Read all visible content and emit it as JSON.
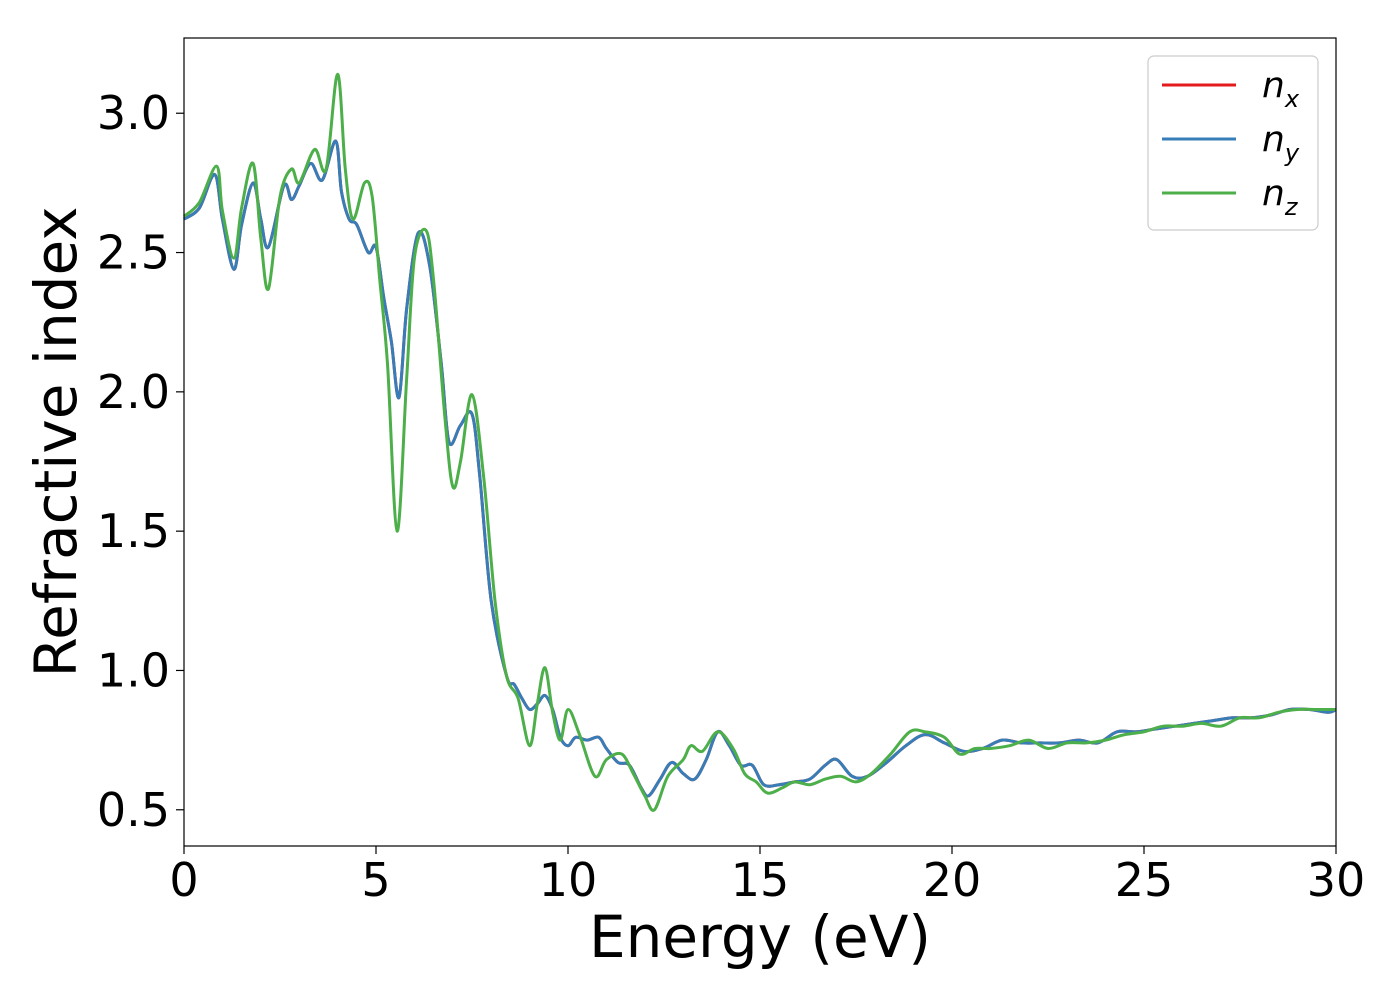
{
  "chart_data": {
    "type": "line",
    "xlabel": "Energy (eV)",
    "ylabel": "Refractive index",
    "xlim": [
      0,
      30
    ],
    "ylim": [
      0.37,
      3.27
    ],
    "xticks": [
      0,
      5,
      10,
      15,
      20,
      25,
      30
    ],
    "xtick_labels": [
      "0",
      "5",
      "10",
      "15",
      "20",
      "25",
      "30"
    ],
    "yticks": [
      0.5,
      1.0,
      1.5,
      2.0,
      2.5,
      3.0
    ],
    "ytick_labels": [
      "0.5",
      "1.0",
      "1.5",
      "2.0",
      "2.5",
      "3.0"
    ],
    "grid": false,
    "legend_position": "top-right",
    "series": [
      {
        "name": "n",
        "sub": "x",
        "color": "#e41a1c",
        "x": [
          0,
          0.4,
          0.8,
          1.0,
          1.3,
          1.5,
          1.8,
          2.0,
          2.2,
          2.6,
          2.8,
          3.0,
          3.3,
          3.6,
          3.95,
          4.1,
          4.3,
          4.5,
          4.8,
          5.0,
          5.2,
          5.4,
          5.6,
          5.8,
          6.1,
          6.4,
          6.7,
          6.9,
          7.2,
          7.5,
          7.7,
          8.0,
          8.4,
          8.6,
          8.8,
          9.0,
          9.2,
          9.4,
          9.6,
          9.8,
          10.0,
          10.2,
          10.5,
          10.8,
          11.0,
          11.3,
          11.6,
          11.9,
          12.1,
          12.4,
          12.7,
          13.0,
          13.3,
          13.6,
          13.9,
          14.2,
          14.5,
          14.8,
          15.1,
          15.5,
          15.9,
          16.3,
          16.7,
          17.0,
          17.4,
          17.8,
          18.3,
          18.8,
          19.3,
          19.8,
          20.3,
          20.8,
          21.3,
          21.8,
          22.3,
          22.8,
          23.3,
          23.8,
          24.3,
          24.8,
          25.3,
          25.8,
          26.3,
          26.8,
          27.3,
          27.8,
          28.3,
          28.8,
          29.3,
          29.8,
          30.0
        ],
        "y": [
          2.62,
          2.66,
          2.78,
          2.62,
          2.44,
          2.6,
          2.75,
          2.62,
          2.52,
          2.74,
          2.69,
          2.74,
          2.82,
          2.76,
          2.9,
          2.72,
          2.62,
          2.6,
          2.5,
          2.52,
          2.34,
          2.18,
          1.98,
          2.3,
          2.57,
          2.45,
          2.1,
          1.82,
          1.88,
          1.92,
          1.7,
          1.25,
          0.98,
          0.95,
          0.9,
          0.86,
          0.88,
          0.91,
          0.86,
          0.76,
          0.73,
          0.76,
          0.75,
          0.76,
          0.72,
          0.67,
          0.66,
          0.58,
          0.55,
          0.61,
          0.67,
          0.63,
          0.61,
          0.68,
          0.78,
          0.73,
          0.66,
          0.66,
          0.59,
          0.59,
          0.6,
          0.61,
          0.66,
          0.68,
          0.62,
          0.62,
          0.67,
          0.73,
          0.77,
          0.74,
          0.71,
          0.72,
          0.75,
          0.74,
          0.74,
          0.74,
          0.75,
          0.74,
          0.78,
          0.78,
          0.79,
          0.8,
          0.81,
          0.82,
          0.83,
          0.83,
          0.84,
          0.86,
          0.86,
          0.85,
          0.86
        ]
      },
      {
        "name": "n",
        "sub": "y",
        "color": "#377eb8",
        "x": [
          0,
          0.4,
          0.8,
          1.0,
          1.3,
          1.5,
          1.8,
          2.0,
          2.2,
          2.6,
          2.8,
          3.0,
          3.3,
          3.6,
          3.95,
          4.1,
          4.3,
          4.5,
          4.8,
          5.0,
          5.2,
          5.4,
          5.6,
          5.8,
          6.1,
          6.4,
          6.7,
          6.9,
          7.2,
          7.5,
          7.7,
          8.0,
          8.4,
          8.6,
          8.8,
          9.0,
          9.2,
          9.4,
          9.6,
          9.8,
          10.0,
          10.2,
          10.5,
          10.8,
          11.0,
          11.3,
          11.6,
          11.9,
          12.1,
          12.4,
          12.7,
          13.0,
          13.3,
          13.6,
          13.9,
          14.2,
          14.5,
          14.8,
          15.1,
          15.5,
          15.9,
          16.3,
          16.7,
          17.0,
          17.4,
          17.8,
          18.3,
          18.8,
          19.3,
          19.8,
          20.3,
          20.8,
          21.3,
          21.8,
          22.3,
          22.8,
          23.3,
          23.8,
          24.3,
          24.8,
          25.3,
          25.8,
          26.3,
          26.8,
          27.3,
          27.8,
          28.3,
          28.8,
          29.3,
          29.8,
          30.0
        ],
        "y": [
          2.62,
          2.66,
          2.78,
          2.62,
          2.44,
          2.6,
          2.75,
          2.62,
          2.52,
          2.74,
          2.69,
          2.74,
          2.82,
          2.76,
          2.9,
          2.72,
          2.62,
          2.6,
          2.5,
          2.52,
          2.34,
          2.18,
          1.98,
          2.3,
          2.57,
          2.45,
          2.1,
          1.82,
          1.88,
          1.92,
          1.7,
          1.25,
          0.98,
          0.95,
          0.9,
          0.86,
          0.88,
          0.91,
          0.86,
          0.76,
          0.73,
          0.76,
          0.75,
          0.76,
          0.72,
          0.67,
          0.66,
          0.58,
          0.55,
          0.61,
          0.67,
          0.63,
          0.61,
          0.68,
          0.78,
          0.73,
          0.66,
          0.66,
          0.59,
          0.59,
          0.6,
          0.61,
          0.66,
          0.68,
          0.62,
          0.62,
          0.67,
          0.73,
          0.77,
          0.74,
          0.71,
          0.72,
          0.75,
          0.74,
          0.74,
          0.74,
          0.75,
          0.74,
          0.78,
          0.78,
          0.79,
          0.8,
          0.81,
          0.82,
          0.83,
          0.83,
          0.84,
          0.86,
          0.86,
          0.85,
          0.86
        ]
      },
      {
        "name": "n",
        "sub": "z",
        "color": "#4daf4a",
        "x": [
          0,
          0.4,
          0.85,
          1.0,
          1.3,
          1.5,
          1.8,
          2.0,
          2.2,
          2.5,
          2.8,
          3.0,
          3.4,
          3.7,
          4.0,
          4.2,
          4.4,
          4.7,
          4.9,
          5.1,
          5.3,
          5.55,
          5.8,
          6.0,
          6.3,
          6.5,
          6.8,
          7.0,
          7.2,
          7.5,
          7.8,
          8.1,
          8.4,
          8.7,
          9.0,
          9.2,
          9.4,
          9.6,
          9.8,
          10.0,
          10.3,
          10.7,
          11.0,
          11.4,
          11.7,
          12.0,
          12.25,
          12.6,
          13.0,
          13.2,
          13.5,
          13.9,
          14.3,
          14.6,
          14.9,
          15.2,
          15.6,
          15.9,
          16.3,
          16.7,
          17.1,
          17.5,
          17.9,
          18.4,
          18.9,
          19.3,
          19.8,
          20.2,
          20.6,
          21.0,
          21.5,
          22.0,
          22.5,
          23.0,
          23.5,
          24.0,
          24.5,
          25.0,
          25.5,
          26.0,
          26.5,
          27.0,
          27.5,
          28.0,
          28.5,
          29.0,
          29.5,
          30.0
        ],
        "y": [
          2.63,
          2.68,
          2.81,
          2.65,
          2.48,
          2.66,
          2.82,
          2.55,
          2.37,
          2.7,
          2.8,
          2.75,
          2.87,
          2.8,
          3.14,
          2.8,
          2.62,
          2.75,
          2.7,
          2.4,
          2.1,
          1.5,
          2.05,
          2.48,
          2.58,
          2.4,
          1.9,
          1.66,
          1.75,
          1.99,
          1.7,
          1.25,
          0.98,
          0.9,
          0.73,
          0.88,
          1.01,
          0.85,
          0.75,
          0.86,
          0.77,
          0.62,
          0.68,
          0.7,
          0.63,
          0.55,
          0.5,
          0.62,
          0.68,
          0.73,
          0.71,
          0.78,
          0.72,
          0.63,
          0.6,
          0.56,
          0.58,
          0.6,
          0.59,
          0.61,
          0.62,
          0.6,
          0.63,
          0.7,
          0.78,
          0.78,
          0.76,
          0.7,
          0.72,
          0.72,
          0.73,
          0.75,
          0.72,
          0.74,
          0.74,
          0.75,
          0.77,
          0.78,
          0.8,
          0.8,
          0.81,
          0.8,
          0.83,
          0.83,
          0.85,
          0.86,
          0.86,
          0.86
        ]
      }
    ]
  }
}
